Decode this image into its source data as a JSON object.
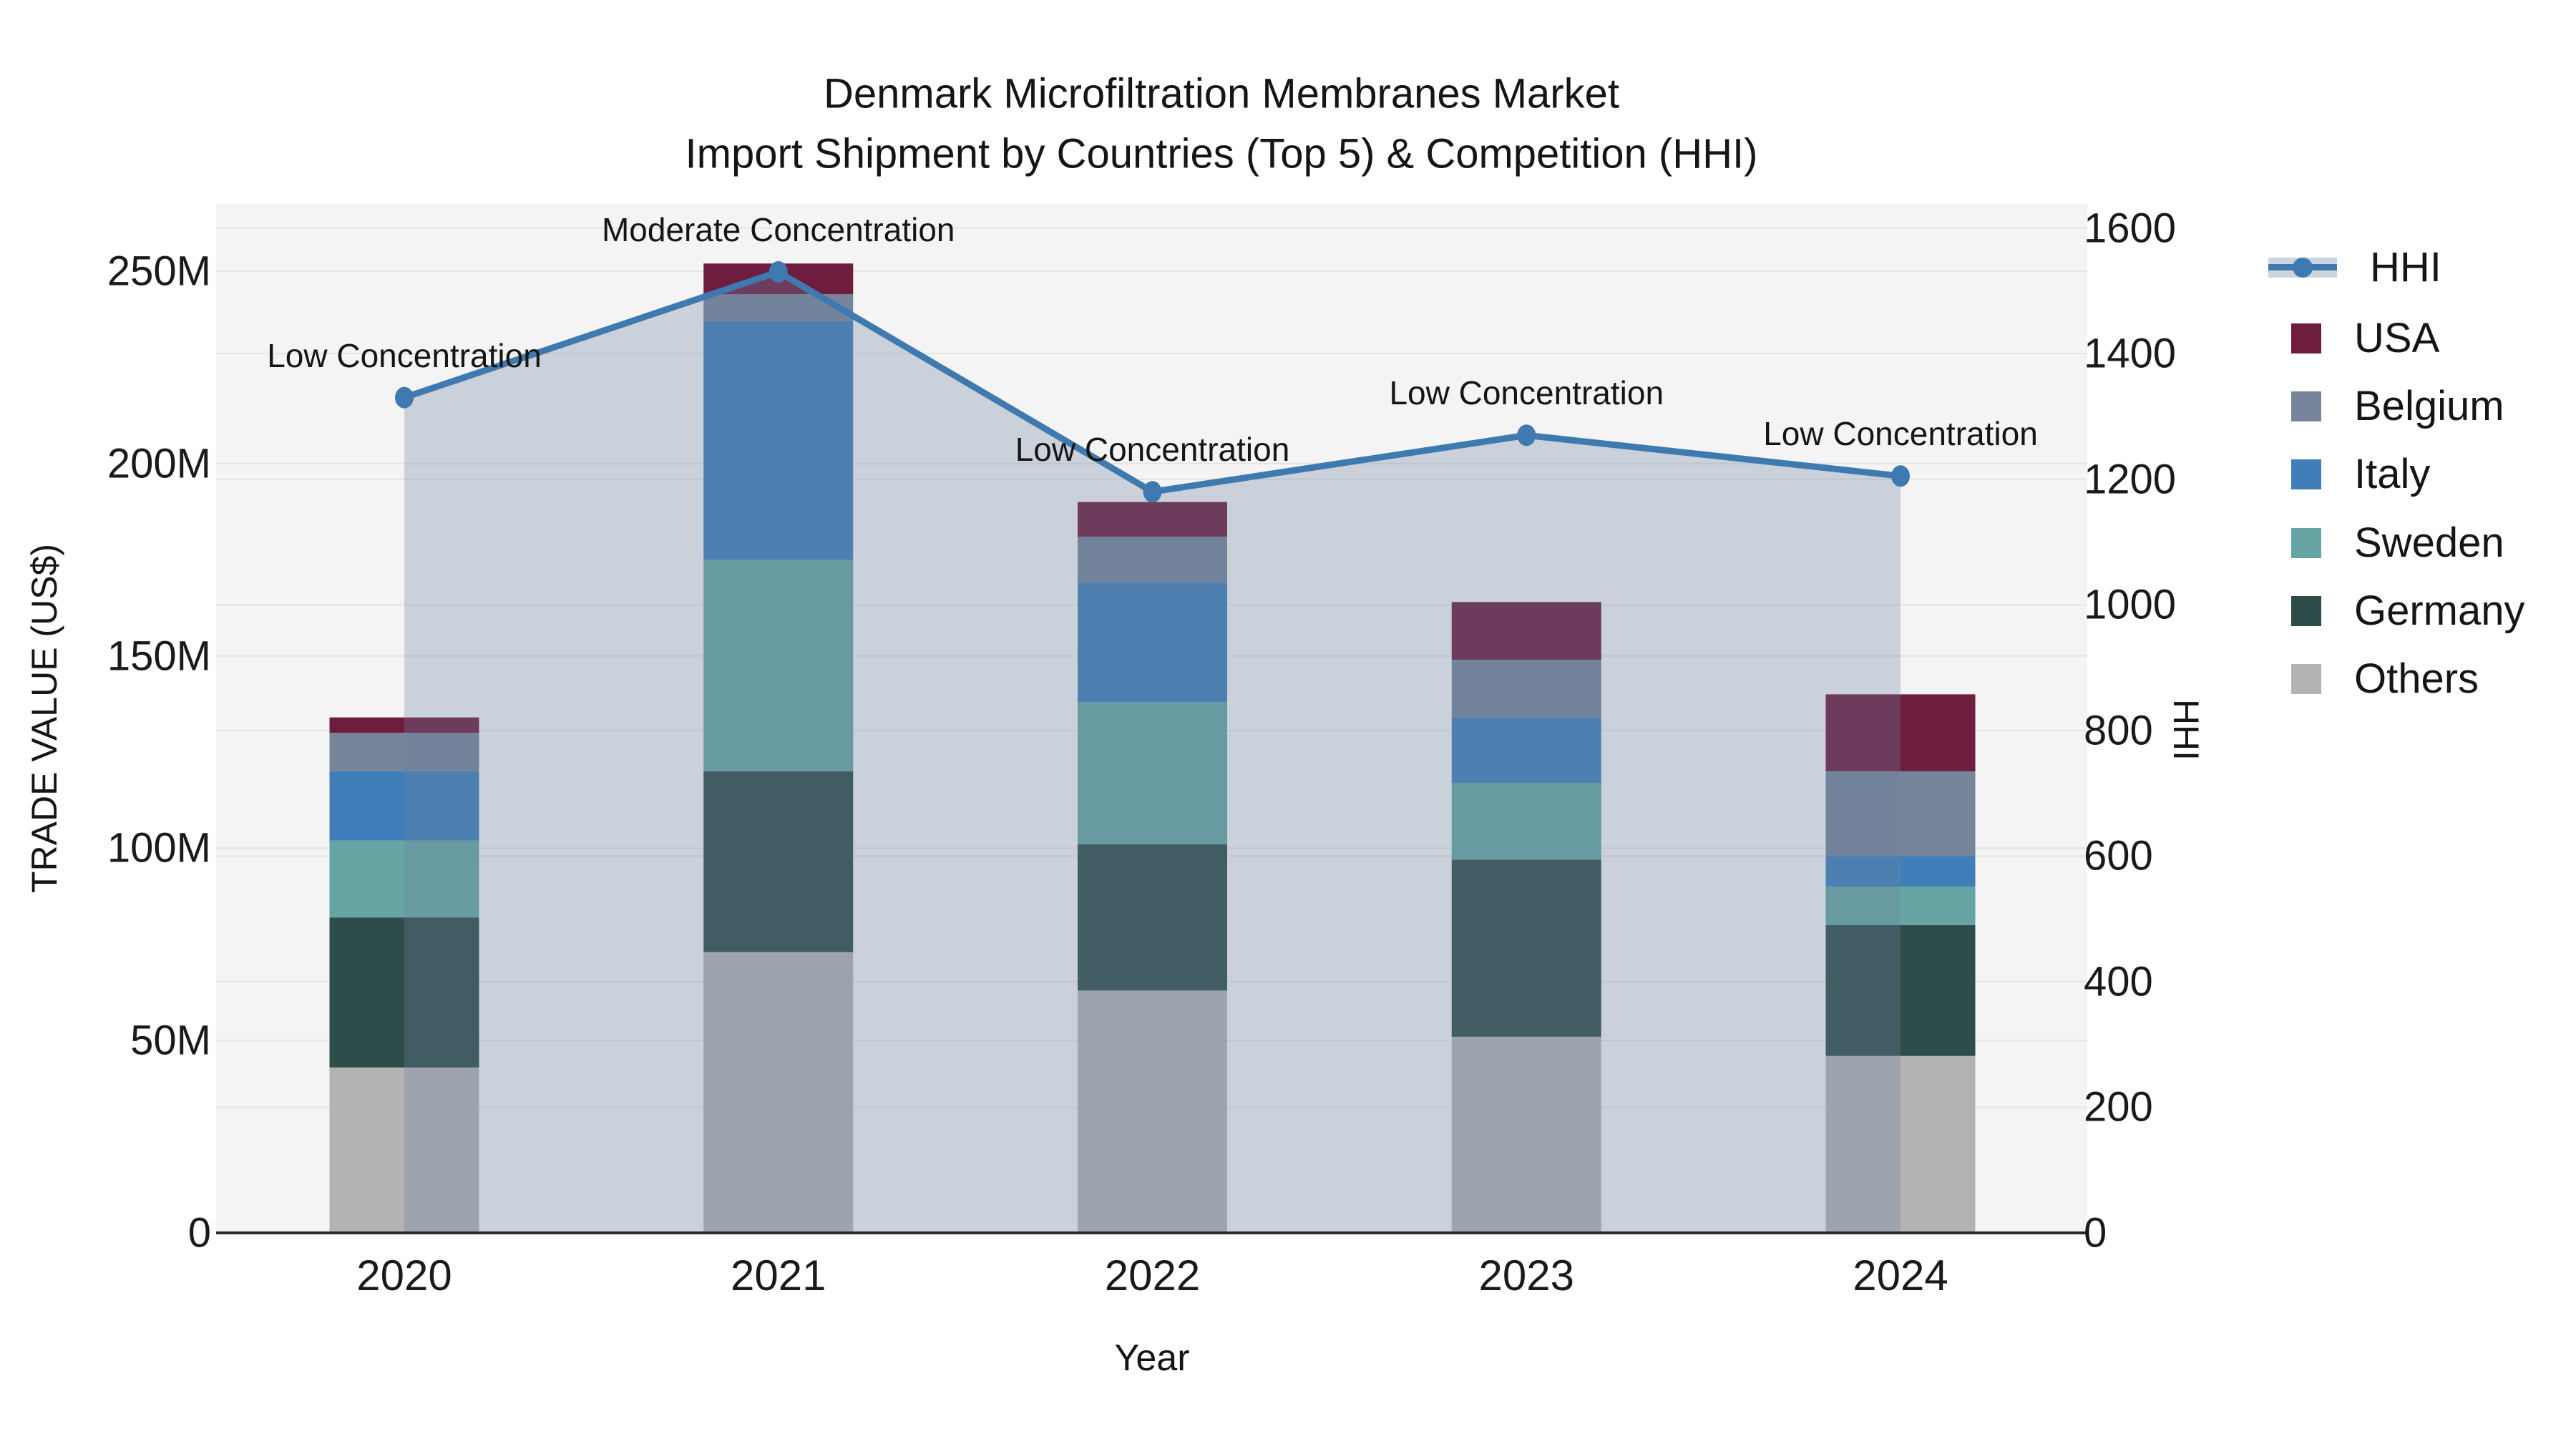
{
  "title": {
    "line1": "Denmark Microfiltration Membranes Market",
    "line2": "Import Shipment by Countries (Top 5) & Competition (HHI)"
  },
  "colors": {
    "hhi_line": "#3e7ab0",
    "hhi_area_fill": "rgba(108,130,158,0.30)",
    "plot_background": "#f4f4f4",
    "gridline": "#e4e4e4",
    "axis_line": "#2a2a2a"
  },
  "legend": {
    "position": "right",
    "items": [
      {
        "label": "HHI",
        "type": "line",
        "color": "#3e7ab0"
      },
      {
        "label": "USA",
        "type": "swatch",
        "color": "#6e1d3e"
      },
      {
        "label": "Belgium",
        "type": "swatch",
        "color": "#76859a"
      },
      {
        "label": "Italy",
        "type": "swatch",
        "color": "#3f7eb8"
      },
      {
        "label": "Sweden",
        "type": "swatch",
        "color": "#66a5a3"
      },
      {
        "label": "Germany",
        "type": "swatch",
        "color": "#2e4c49"
      },
      {
        "label": "Others",
        "type": "swatch",
        "color": "#b3b3b3"
      }
    ]
  },
  "chart_data": {
    "type": "bar",
    "subtype": "stacked-bars-with-overlaid-line-and-area",
    "categories": [
      "2020",
      "2021",
      "2022",
      "2023",
      "2024"
    ],
    "value_unit": "US$ millions",
    "series": [
      {
        "name": "Others",
        "color": "#b3b3b3",
        "values": [
          43,
          73,
          63,
          51,
          46
        ]
      },
      {
        "name": "Germany",
        "color": "#2e4c49",
        "values": [
          39,
          47,
          38,
          46,
          34
        ]
      },
      {
        "name": "Sweden",
        "color": "#66a5a3",
        "values": [
          20,
          55,
          37,
          20,
          10
        ]
      },
      {
        "name": "Italy",
        "color": "#3f7eb8",
        "values": [
          18,
          62,
          31,
          17,
          8
        ]
      },
      {
        "name": "Belgium",
        "color": "#76859a",
        "values": [
          10,
          7,
          12,
          15,
          22
        ]
      },
      {
        "name": "USA",
        "color": "#6e1d3e",
        "values": [
          4,
          8,
          9,
          15,
          20
        ]
      }
    ],
    "stack_order_note": "series listed bottom-to-top of stack",
    "bar_totals": [
      134,
      252,
      190,
      164,
      140
    ],
    "line": {
      "name": "HHI",
      "axis": "right",
      "color": "#3e7ab0",
      "values": [
        1330,
        1530,
        1180,
        1270,
        1205
      ],
      "area_under_line": true
    },
    "annotations": [
      {
        "category": "2020",
        "text": "Low Concentration"
      },
      {
        "category": "2021",
        "text": "Moderate Concentration"
      },
      {
        "category": "2022",
        "text": "Low Concentration"
      },
      {
        "category": "2023",
        "text": "Low Concentration"
      },
      {
        "category": "2024",
        "text": "Low Concentration"
      }
    ],
    "left_axis": {
      "label": "TRADE VALUE (US$)",
      "tick_labels": [
        "0",
        "50M",
        "100M",
        "150M",
        "200M",
        "250M"
      ],
      "tick_values": [
        0,
        50,
        100,
        150,
        200,
        250
      ],
      "range": [
        0,
        267.5
      ]
    },
    "right_axis": {
      "label": "HHI",
      "tick_labels": [
        "0",
        "200",
        "400",
        "600",
        "800",
        "1000",
        "1200",
        "1400",
        "1600"
      ],
      "tick_values": [
        0,
        200,
        400,
        600,
        800,
        1000,
        1200,
        1400,
        1600
      ],
      "range": [
        0,
        1638
      ]
    },
    "x_axis": {
      "label": "Year"
    },
    "grid": true,
    "legend_position": "right-outside"
  }
}
